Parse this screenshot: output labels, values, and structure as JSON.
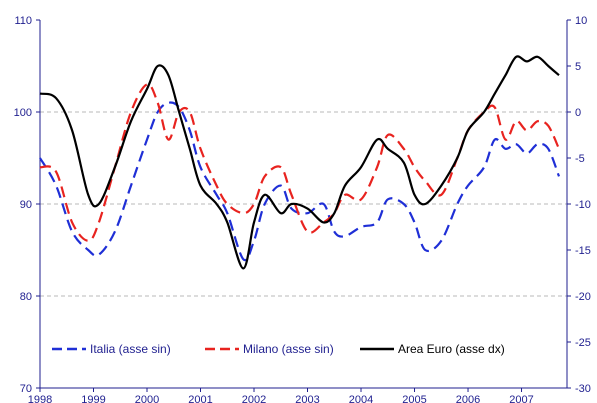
{
  "chart_data": {
    "type": "line",
    "title": "",
    "xlabel": "",
    "ylabel_left": "",
    "ylabel_right": "",
    "x_tick_labels": [
      "1998",
      "1999",
      "2000",
      "2001",
      "2002",
      "2003",
      "2004",
      "2005",
      "2006",
      "2007"
    ],
    "x_range": [
      1998.0,
      2007.85
    ],
    "y_left": {
      "range": [
        70,
        110
      ],
      "ticks": [
        "70",
        "80",
        "90",
        "100",
        "110"
      ]
    },
    "y_right": {
      "range": [
        -30,
        10
      ],
      "ticks": [
        "-30",
        "-25",
        "-20",
        "-15",
        "-10",
        "-5",
        "0",
        "5",
        "10"
      ]
    },
    "gridlines": "dashed horizontal at left-axis values 80, 90, 100",
    "legend_position": "bottom-inside",
    "series": [
      {
        "name": "Italia (asse sin)",
        "axis": "left",
        "color": "#1f2fd6",
        "style": "dashed",
        "x": [
          1998.0,
          1998.3,
          1998.6,
          1998.9,
          1999.1,
          1999.4,
          1999.7,
          2000.0,
          2000.2,
          2000.4,
          2000.6,
          2000.8,
          2001.0,
          2001.3,
          2001.5,
          2001.8,
          2002.0,
          2002.2,
          2002.5,
          2002.7,
          2003.0,
          2003.3,
          2003.5,
          2003.7,
          2004.0,
          2004.3,
          2004.5,
          2004.8,
          2005.0,
          2005.2,
          2005.5,
          2005.8,
          2006.0,
          2006.3,
          2006.5,
          2006.7,
          2006.9,
          2007.1,
          2007.3,
          2007.5,
          2007.7
        ],
        "values": [
          95.0,
          92.0,
          87.0,
          85.0,
          84.5,
          87.0,
          92.0,
          97.0,
          100.0,
          101.0,
          100.5,
          98.0,
          94.0,
          91.0,
          89.0,
          84.0,
          86.0,
          90.0,
          92.0,
          89.5,
          89.0,
          90.0,
          87.0,
          86.5,
          87.5,
          88.0,
          90.5,
          90.0,
          88.0,
          85.0,
          86.0,
          90.0,
          92.0,
          94.0,
          97.0,
          96.0,
          96.5,
          95.5,
          96.5,
          96.0,
          93.0
        ]
      },
      {
        "name": "Milano (asse sin)",
        "axis": "left",
        "color": "#e8231f",
        "style": "dashed",
        "x": [
          1998.0,
          1998.3,
          1998.6,
          1998.9,
          1999.1,
          1999.4,
          1999.7,
          2000.0,
          2000.2,
          2000.4,
          2000.6,
          2000.8,
          2001.0,
          2001.3,
          2001.5,
          2001.8,
          2002.0,
          2002.2,
          2002.5,
          2002.7,
          2003.0,
          2003.3,
          2003.5,
          2003.7,
          2004.0,
          2004.3,
          2004.5,
          2004.8,
          2005.0,
          2005.2,
          2005.5,
          2005.8,
          2006.0,
          2006.3,
          2006.5,
          2006.7,
          2006.9,
          2007.1,
          2007.3,
          2007.5,
          2007.7
        ],
        "values": [
          94.0,
          93.5,
          88.0,
          86.0,
          88.0,
          94.0,
          100.0,
          103.0,
          101.0,
          97.0,
          100.0,
          100.0,
          96.0,
          92.0,
          90.0,
          89.0,
          90.0,
          93.0,
          94.0,
          91.0,
          87.0,
          88.0,
          89.0,
          91.0,
          90.5,
          94.0,
          97.5,
          96.0,
          94.0,
          92.5,
          91.0,
          95.0,
          98.0,
          100.0,
          100.5,
          97.0,
          99.0,
          98.0,
          99.0,
          98.5,
          96.0
        ]
      },
      {
        "name": "Area Euro (asse dx)",
        "axis": "right",
        "color": "#000000",
        "style": "solid",
        "x": [
          1998.0,
          1998.3,
          1998.6,
          1998.9,
          1999.1,
          1999.4,
          1999.7,
          2000.0,
          2000.2,
          2000.4,
          2000.6,
          2000.8,
          2001.0,
          2001.3,
          2001.5,
          2001.8,
          2002.0,
          2002.2,
          2002.5,
          2002.7,
          2003.0,
          2003.3,
          2003.5,
          2003.7,
          2004.0,
          2004.3,
          2004.5,
          2004.8,
          2005.0,
          2005.2,
          2005.5,
          2005.8,
          2006.0,
          2006.3,
          2006.5,
          2006.7,
          2006.9,
          2007.1,
          2007.3,
          2007.5,
          2007.7
        ],
        "values": [
          2.0,
          1.5,
          -2.0,
          -9.0,
          -10.0,
          -6.0,
          -1.0,
          2.5,
          5.0,
          4.0,
          0.0,
          -4.0,
          -8.0,
          -10.0,
          -12.0,
          -17.0,
          -12.0,
          -9.0,
          -11.0,
          -10.0,
          -10.5,
          -12.0,
          -11.0,
          -8.0,
          -6.0,
          -3.0,
          -4.0,
          -5.5,
          -9.0,
          -10.0,
          -8.0,
          -5.0,
          -2.0,
          0.0,
          2.0,
          4.0,
          6.0,
          5.5,
          6.0,
          5.0,
          4.0
        ]
      }
    ]
  }
}
